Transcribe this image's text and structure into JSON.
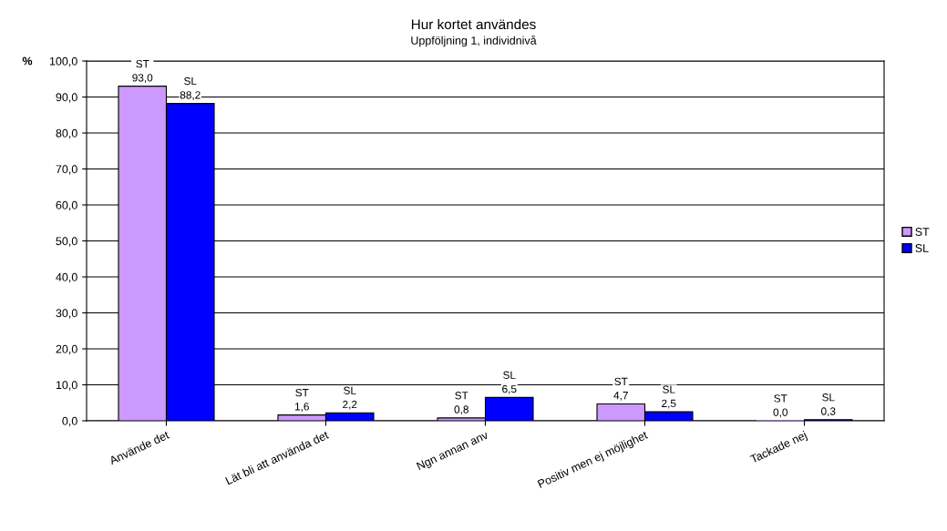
{
  "chart_data": {
    "type": "bar",
    "title": "Hur kortet användes",
    "subtitle": "Uppföljning 1, individnivå",
    "ylabel": "%",
    "categories": [
      "Använde det",
      "Lät bli att använda det",
      "Ngn annan anv",
      "Positiv men ej möjlighet",
      "Tackade nej"
    ],
    "series": [
      {
        "name": "ST",
        "color": "#cc99ff",
        "values": [
          93.0,
          1.6,
          0.8,
          4.7,
          0.0
        ],
        "value_labels": [
          "ST\n93,0",
          "ST\n1,6",
          "ST\n0,8",
          "ST\n4,7",
          "ST\n0,0"
        ]
      },
      {
        "name": "SL",
        "color": "#0000ff",
        "values": [
          88.2,
          2.2,
          6.5,
          2.5,
          0.3
        ],
        "value_labels": [
          "SL\n88,2",
          "SL\n2,2",
          "SL\n6,5",
          "SL\n2,5",
          "SL\n0,3"
        ]
      }
    ],
    "ylim": [
      0,
      100
    ],
    "yticks": [
      {
        "value": 0,
        "label": "0,0"
      },
      {
        "value": 10,
        "label": "10,0"
      },
      {
        "value": 20,
        "label": "20,0"
      },
      {
        "value": 30,
        "label": "30,0"
      },
      {
        "value": 40,
        "label": "40,0"
      },
      {
        "value": 50,
        "label": "50,0"
      },
      {
        "value": 60,
        "label": "60,0"
      },
      {
        "value": 70,
        "label": "70,0"
      },
      {
        "value": 80,
        "label": "80,0"
      },
      {
        "value": 90,
        "label": "90,0"
      },
      {
        "value": 100,
        "label": "100,0"
      }
    ],
    "grid": "y",
    "legend": "right"
  }
}
